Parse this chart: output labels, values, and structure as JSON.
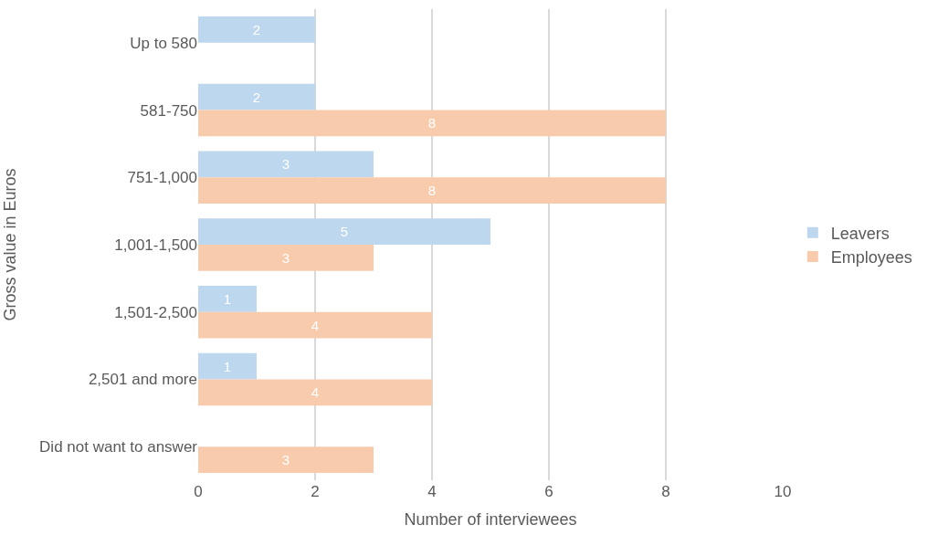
{
  "chart_data": {
    "type": "bar",
    "orientation": "horizontal",
    "ylabel": "Gross value in Euros",
    "xlabel": "Number of interviewees",
    "categories": [
      "Up to 580",
      "581-750",
      "751-1,000",
      "1,001-1,500",
      "1,501-2,500",
      "2,501 and more",
      "Did not want to answer"
    ],
    "series": [
      {
        "name": "Leavers",
        "color": "#bdd7ee",
        "values": [
          2,
          2,
          3,
          5,
          1,
          1,
          null
        ]
      },
      {
        "name": "Employees",
        "color": "#f8cbad",
        "values": [
          null,
          8,
          8,
          3,
          4,
          4,
          3
        ]
      }
    ],
    "xlim": [
      0,
      10
    ],
    "xticks": [
      0,
      2,
      4,
      6,
      8,
      10
    ],
    "grid": "x",
    "legend": "right",
    "data_labels": true
  }
}
